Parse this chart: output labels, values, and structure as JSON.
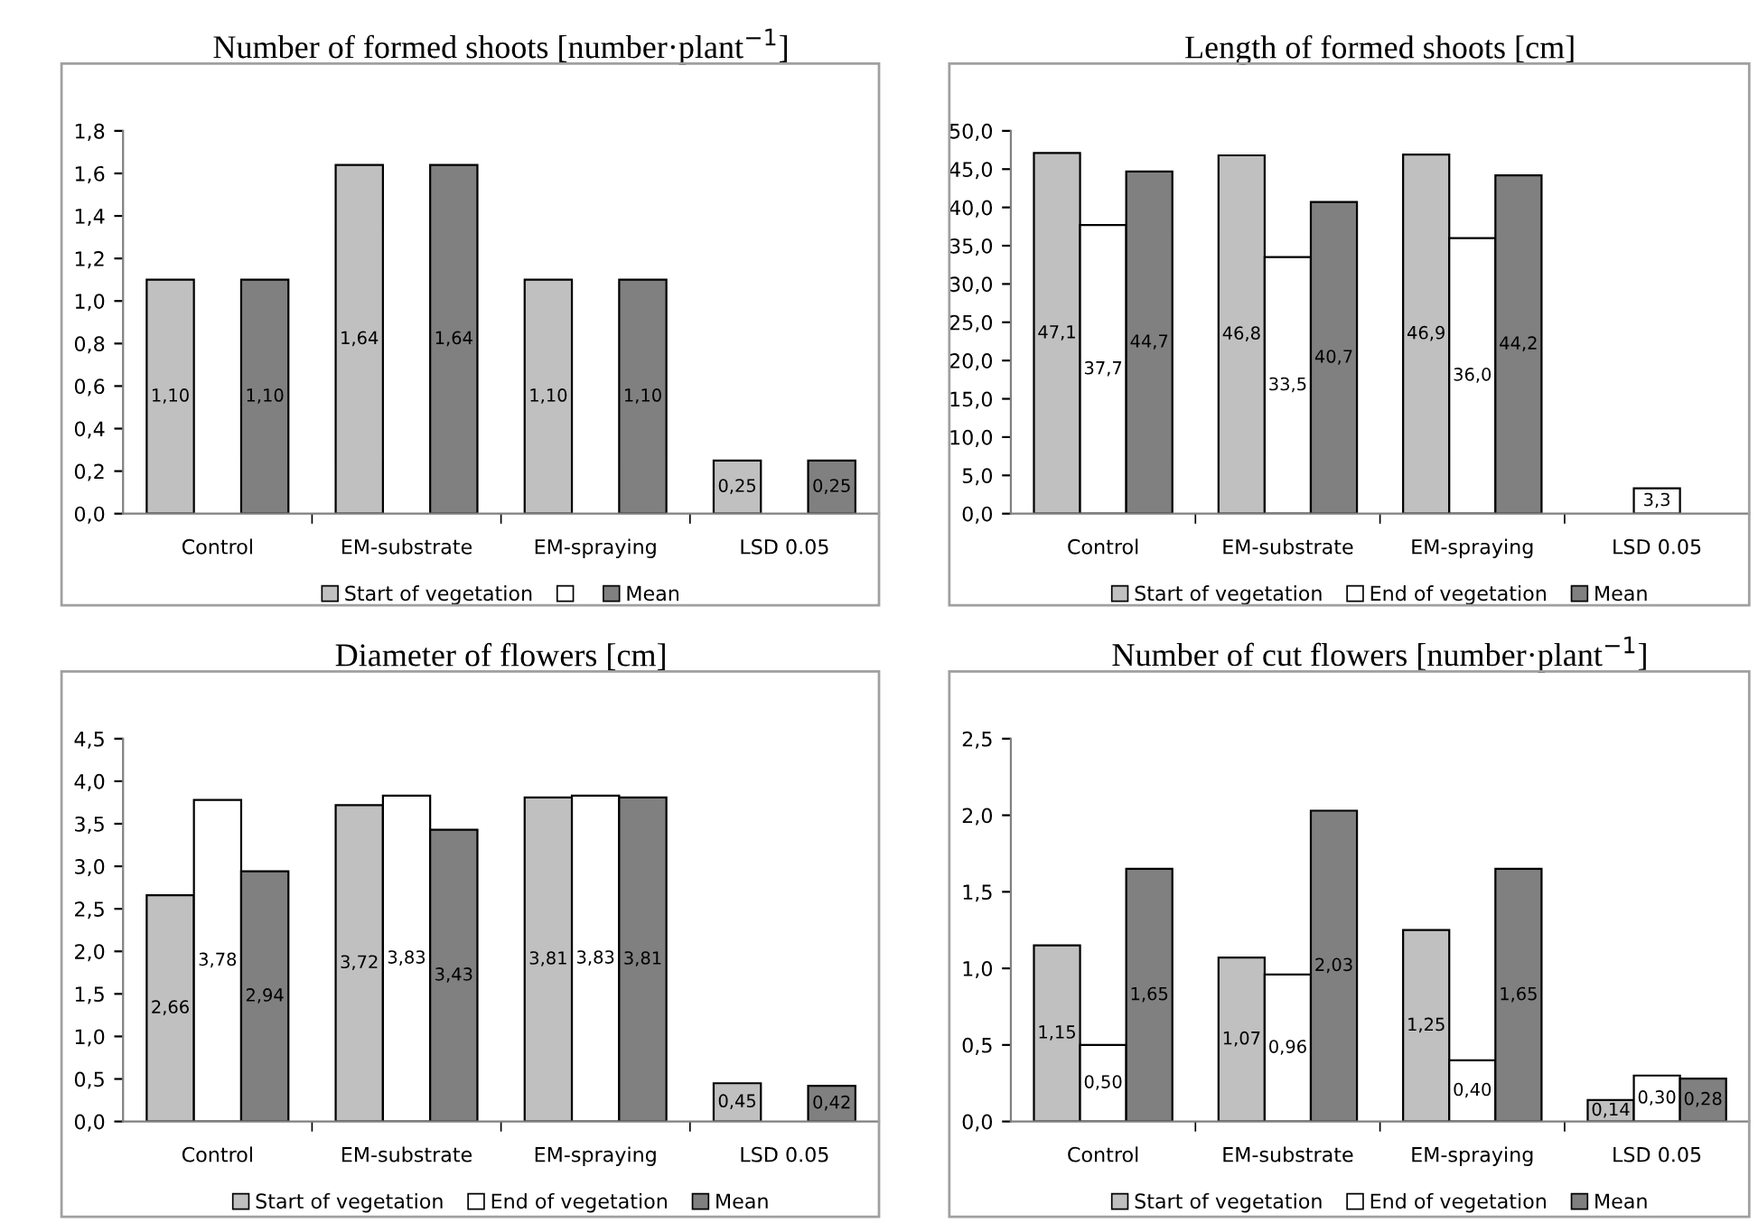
{
  "chart_data": [
    {
      "type": "bar",
      "title": "Number of formed shoots [number·plant$^{−1}$]",
      "categories": [
        "Control",
        "EM-substrate",
        "EM-spraying",
        "LSD 0.05"
      ],
      "ylim": [
        0,
        1.8
      ],
      "yticks": [
        {
          "value": 0,
          "label": "0,0"
        },
        {
          "value": 0.2,
          "label": "0,2"
        },
        {
          "value": 0.4,
          "label": "0,4"
        },
        {
          "value": 0.6,
          "label": "0,6"
        },
        {
          "value": 0.8,
          "label": "0,8"
        },
        {
          "value": 1.0,
          "label": "1,0"
        },
        {
          "value": 1.2,
          "label": "1,2"
        },
        {
          "value": 1.4,
          "label": "1,4"
        },
        {
          "value": 1.6,
          "label": "1,6"
        },
        {
          "value": 1.8,
          "label": "1,8"
        }
      ],
      "legend": "bottom",
      "grid": false,
      "series": [
        {
          "name": "Start of vegetation",
          "color": "#c0c0c0",
          "values": [
            1.1,
            1.64,
            1.1,
            0.25
          ],
          "value_labels": [
            "1,10",
            "1,64",
            "1,10",
            "0,25"
          ]
        },
        {
          "color": "#ffffff",
          "values": [
            null,
            null,
            null,
            null
          ]
        },
        {
          "name": "Mean",
          "color": "#808080",
          "values": [
            1.1,
            1.64,
            1.1,
            0.25
          ],
          "value_labels": [
            "1,10",
            "1,64",
            "1,10",
            "0,25"
          ]
        }
      ]
    },
    {
      "type": "bar",
      "title": "Length of formed shoots [cm]",
      "categories": [
        "Control",
        "EM-substrate",
        "EM-spraying",
        "LSD 0.05"
      ],
      "ylim": [
        0,
        50
      ],
      "yticks": [
        {
          "value": 0,
          "label": "0,0"
        },
        {
          "value": 5,
          "label": "5,0"
        },
        {
          "value": 10,
          "label": "10,0"
        },
        {
          "value": 15,
          "label": "15,0"
        },
        {
          "value": 20,
          "label": "20,0"
        },
        {
          "value": 25,
          "label": "25,0"
        },
        {
          "value": 30,
          "label": "30,0"
        },
        {
          "value": 35,
          "label": "35,0"
        },
        {
          "value": 40,
          "label": "40,0"
        },
        {
          "value": 45,
          "label": "45,0"
        },
        {
          "value": 50,
          "label": "50,0"
        }
      ],
      "legend": "bottom",
      "grid": false,
      "series": [
        {
          "name": "Start of vegetation",
          "color": "#c0c0c0",
          "values": [
            47.1,
            46.8,
            46.9,
            null
          ],
          "value_labels": [
            "47,1",
            "46,8",
            "46,9",
            null
          ]
        },
        {
          "name": "End of vegetation",
          "color": "#ffffff",
          "values": [
            37.7,
            33.5,
            36.0,
            3.3
          ],
          "value_labels": [
            "37,7",
            "33,5",
            "36,0",
            "3,3"
          ]
        },
        {
          "name": "Mean",
          "color": "#808080",
          "values": [
            44.7,
            40.7,
            44.2,
            null
          ],
          "value_labels": [
            "44,7",
            "40,7",
            "44,2",
            null
          ]
        }
      ]
    },
    {
      "type": "bar",
      "title": "Diameter of flowers [cm]",
      "categories": [
        "Control",
        "EM-substrate",
        "EM-spraying",
        "LSD 0.05"
      ],
      "ylim": [
        0,
        4.5
      ],
      "yticks": [
        {
          "value": 0,
          "label": "0,0"
        },
        {
          "value": 0.5,
          "label": "0,5"
        },
        {
          "value": 1.0,
          "label": "1,0"
        },
        {
          "value": 1.5,
          "label": "1,5"
        },
        {
          "value": 2.0,
          "label": "2,0"
        },
        {
          "value": 2.5,
          "label": "2,5"
        },
        {
          "value": 3.0,
          "label": "3,0"
        },
        {
          "value": 3.5,
          "label": "3,5"
        },
        {
          "value": 4.0,
          "label": "4,0"
        },
        {
          "value": 4.5,
          "label": "4,5"
        }
      ],
      "legend": "bottom",
      "grid": false,
      "series": [
        {
          "name": "Start of vegetation",
          "color": "#c0c0c0",
          "values": [
            2.66,
            3.72,
            3.81,
            0.45
          ],
          "value_labels": [
            "2,66",
            "3,72",
            "3,81",
            "0,45"
          ]
        },
        {
          "name": "End of vegetation",
          "color": "#ffffff",
          "values": [
            3.78,
            3.83,
            3.83,
            null
          ],
          "value_labels": [
            "3,78",
            "3,83",
            "3,83",
            null
          ]
        },
        {
          "name": "Mean",
          "color": "#808080",
          "values": [
            2.94,
            3.43,
            3.81,
            0.42
          ],
          "value_labels": [
            "2,94",
            "3,43",
            "3,81",
            "0,42"
          ]
        }
      ]
    },
    {
      "type": "bar",
      "title": "Number of cut flowers [number·plant$^{−1}$]",
      "categories": [
        "Control",
        "EM-substrate",
        "EM-spraying",
        "LSD 0.05"
      ],
      "ylim": [
        0,
        2.5
      ],
      "yticks": [
        {
          "value": 0,
          "label": "0,0"
        },
        {
          "value": 0.5,
          "label": "0,5"
        },
        {
          "value": 1.0,
          "label": "1,0"
        },
        {
          "value": 1.5,
          "label": "1,5"
        },
        {
          "value": 2.0,
          "label": "2,0"
        },
        {
          "value": 2.5,
          "label": "2,5"
        }
      ],
      "legend": "bottom",
      "grid": false,
      "series": [
        {
          "name": "Start of vegetation",
          "color": "#c0c0c0",
          "values": [
            1.15,
            1.07,
            1.25,
            0.14
          ],
          "value_labels": [
            "1,15",
            "1,07",
            "1,25",
            "0,14"
          ]
        },
        {
          "name": "End of vegetation",
          "color": "#ffffff",
          "values": [
            0.5,
            0.96,
            0.4,
            0.3
          ],
          "value_labels": [
            "0,50",
            "0,96",
            "0,40",
            "0,30"
          ]
        },
        {
          "name": "Mean",
          "color": "#808080",
          "values": [
            1.65,
            2.03,
            1.65,
            0.28
          ],
          "value_labels": [
            "1,65",
            "2,03",
            "1,65",
            "0,28"
          ]
        }
      ]
    }
  ]
}
